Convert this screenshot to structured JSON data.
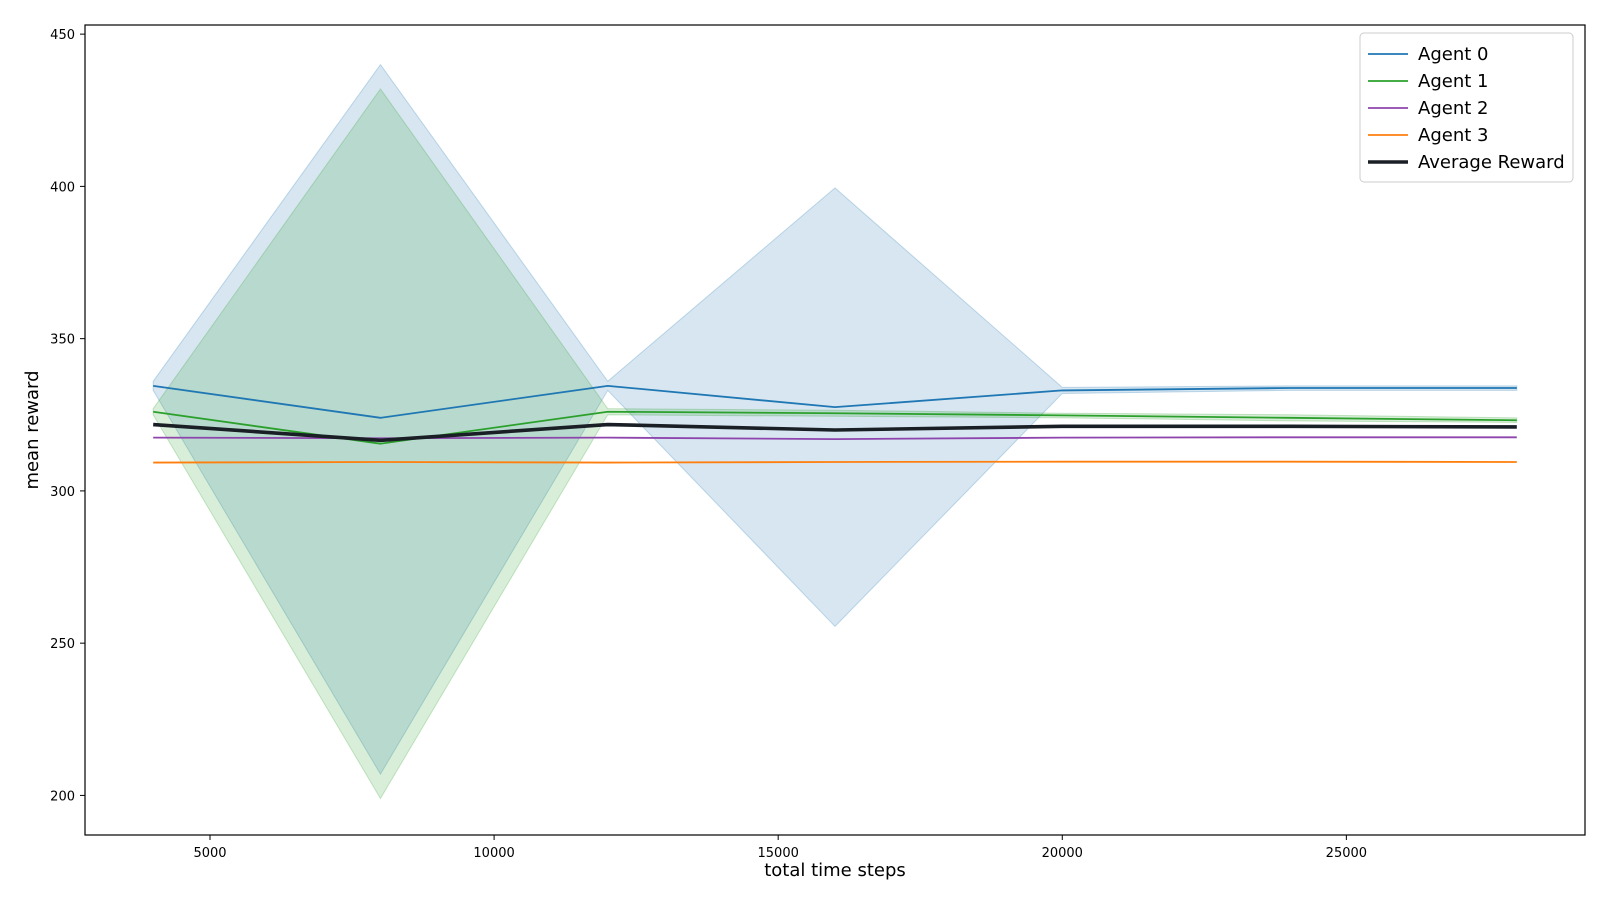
{
  "chart_data": {
    "type": "line",
    "title": "",
    "xlabel": "total time steps",
    "ylabel": "mean reward",
    "xlim": [
      2800,
      29200
    ],
    "ylim": [
      187,
      453
    ],
    "xticks": [
      5000,
      10000,
      15000,
      20000,
      25000
    ],
    "yticks": [
      200,
      250,
      300,
      350,
      400,
      450
    ],
    "grid": false,
    "legend_position": "top-right",
    "x": [
      4000,
      8000,
      12000,
      16000,
      20000,
      24000,
      28000
    ],
    "series": [
      {
        "name": "Agent 0",
        "color": "#1f77b4",
        "values": [
          334.5,
          324.0,
          334.5,
          327.5,
          333.0,
          333.8,
          333.8
        ],
        "lower": [
          333.0,
          207.0,
          333.0,
          255.5,
          332.0,
          333.0,
          333.0
        ],
        "upper": [
          336.0,
          440.0,
          336.0,
          399.5,
          334.0,
          334.5,
          334.5
        ]
      },
      {
        "name": "Agent 1",
        "color": "#2ca02c",
        "values": [
          326.0,
          315.5,
          326.0,
          325.5,
          324.8,
          324.0,
          323.2
        ],
        "lower": [
          325.0,
          199.0,
          325.0,
          324.5,
          324.0,
          323.0,
          322.5
        ],
        "upper": [
          327.0,
          432.0,
          327.0,
          326.5,
          325.5,
          325.0,
          324.0
        ]
      },
      {
        "name": "Agent 2",
        "color": "#8e44ad",
        "values": [
          317.5,
          317.3,
          317.5,
          317.0,
          317.5,
          317.6,
          317.6
        ]
      },
      {
        "name": "Agent 3",
        "color": "#ff7f0e",
        "values": [
          309.3,
          309.5,
          309.3,
          309.5,
          309.6,
          309.6,
          309.5
        ]
      },
      {
        "name": "Average Reward",
        "color": "#1a1f26",
        "values": [
          321.8,
          316.6,
          321.8,
          320.0,
          321.2,
          321.2,
          321.0
        ]
      }
    ]
  }
}
